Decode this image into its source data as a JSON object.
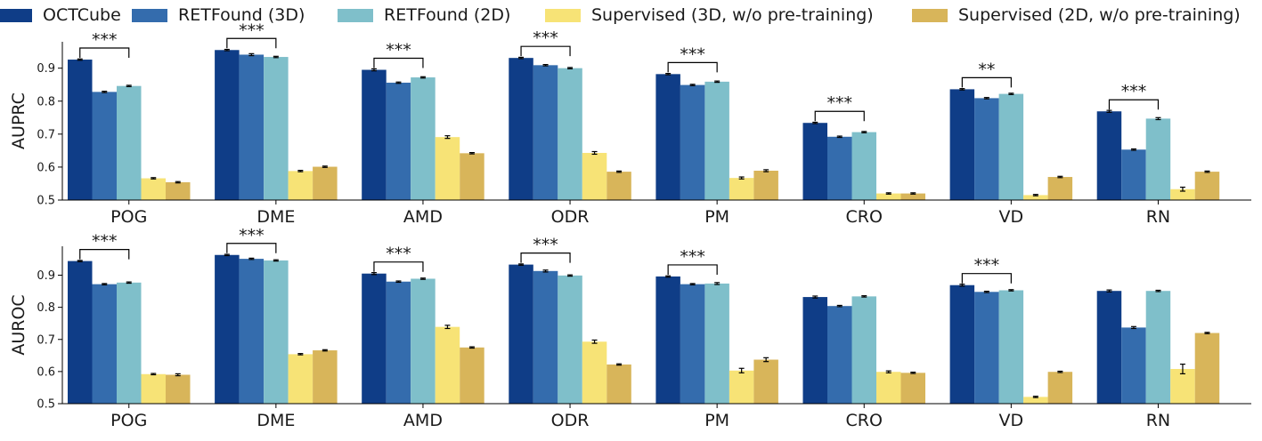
{
  "legend": [
    {
      "label": "OCTCube",
      "color": "#0f3d87"
    },
    {
      "label": "RETFound (3D)",
      "color": "#346cad"
    },
    {
      "label": "RETFound (2D)",
      "color": "#7fbfca"
    },
    {
      "label": "Supervised (3D, w/o pre-training)",
      "color": "#f7e376"
    },
    {
      "label": "Supervised (2D, w/o pre-training)",
      "color": "#d8b55a"
    }
  ],
  "chart_data": [
    {
      "type": "bar",
      "ylabel": "AUPRC",
      "ylim": [
        0.5,
        0.98
      ],
      "yticks": [
        0.5,
        0.6,
        0.7,
        0.8,
        0.9
      ],
      "categories": [
        "POG",
        "DME",
        "AMD",
        "ODR",
        "PM",
        "CRO",
        "VD",
        "RN"
      ],
      "series": [
        {
          "name": "OCTCube",
          "values": [
            0.926,
            0.955,
            0.895,
            0.931,
            0.882,
            0.734,
            0.836,
            0.769
          ]
        },
        {
          "name": "RETFound (3D)",
          "values": [
            0.828,
            0.941,
            0.856,
            0.909,
            0.849,
            0.692,
            0.809,
            0.653
          ]
        },
        {
          "name": "RETFound (2D)",
          "values": [
            0.846,
            0.934,
            0.872,
            0.9,
            0.859,
            0.706,
            0.822,
            0.747
          ]
        },
        {
          "name": "Supervised (3D, w/o pre-training)",
          "values": [
            0.566,
            0.588,
            0.691,
            0.643,
            0.567,
            0.52,
            0.515,
            0.533
          ]
        },
        {
          "name": "Supervised (2D, w/o pre-training)",
          "values": [
            0.554,
            0.601,
            0.642,
            0.586,
            0.589,
            0.52,
            0.57,
            0.586
          ]
        }
      ],
      "errors": [
        [
          0.002,
          0.002,
          0.002,
          0.002,
          0.002
        ],
        [
          0.002,
          0.003,
          0.002,
          0.002,
          0.002
        ],
        [
          0.003,
          0.002,
          0.002,
          0.004,
          0.002
        ],
        [
          0.002,
          0.002,
          0.002,
          0.004,
          0.002
        ],
        [
          0.002,
          0.002,
          0.002,
          0.003,
          0.003
        ],
        [
          0.002,
          0.002,
          0.002,
          0.002,
          0.002
        ],
        [
          0.002,
          0.002,
          0.002,
          0.002,
          0.002
        ],
        [
          0.003,
          0.002,
          0.003,
          0.006,
          0.002
        ]
      ],
      "significance": [
        {
          "category": "POG",
          "label": "***"
        },
        {
          "category": "DME",
          "label": "***"
        },
        {
          "category": "AMD",
          "label": "***"
        },
        {
          "category": "ODR",
          "label": "***"
        },
        {
          "category": "PM",
          "label": "***"
        },
        {
          "category": "CRO",
          "label": "***"
        },
        {
          "category": "VD",
          "label": "**"
        },
        {
          "category": "RN",
          "label": "***"
        }
      ]
    },
    {
      "type": "bar",
      "ylabel": "AUROC",
      "ylim": [
        0.5,
        0.99
      ],
      "yticks": [
        0.5,
        0.6,
        0.7,
        0.8,
        0.9
      ],
      "categories": [
        "POG",
        "DME",
        "AMD",
        "ODR",
        "PM",
        "CRO",
        "VD",
        "RN"
      ],
      "series": [
        {
          "name": "OCTCube",
          "values": [
            0.944,
            0.963,
            0.905,
            0.933,
            0.896,
            0.832,
            0.869,
            0.851
          ]
        },
        {
          "name": "RETFound (3D)",
          "values": [
            0.872,
            0.951,
            0.88,
            0.913,
            0.872,
            0.804,
            0.848,
            0.737
          ]
        },
        {
          "name": "RETFound (2D)",
          "values": [
            0.877,
            0.946,
            0.889,
            0.899,
            0.874,
            0.834,
            0.853,
            0.851
          ]
        },
        {
          "name": "Supervised (3D, w/o pre-training)",
          "values": [
            0.592,
            0.654,
            0.739,
            0.693,
            0.603,
            0.599,
            0.521,
            0.608
          ]
        },
        {
          "name": "Supervised (2D, w/o pre-training)",
          "values": [
            0.59,
            0.666,
            0.675,
            0.622,
            0.637,
            0.596,
            0.599,
            0.72
          ]
        }
      ],
      "errors": [
        [
          0.002,
          0.002,
          0.002,
          0.002,
          0.003
        ],
        [
          0.002,
          0.002,
          0.002,
          0.002,
          0.002
        ],
        [
          0.003,
          0.002,
          0.002,
          0.005,
          0.002
        ],
        [
          0.002,
          0.003,
          0.002,
          0.005,
          0.002
        ],
        [
          0.002,
          0.002,
          0.003,
          0.007,
          0.006
        ],
        [
          0.003,
          0.002,
          0.002,
          0.003,
          0.002
        ],
        [
          0.003,
          0.002,
          0.002,
          0.002,
          0.002
        ],
        [
          0.003,
          0.003,
          0.002,
          0.015,
          0.002
        ]
      ],
      "significance": [
        {
          "category": "POG",
          "label": "***"
        },
        {
          "category": "DME",
          "label": "***"
        },
        {
          "category": "AMD",
          "label": "***"
        },
        {
          "category": "ODR",
          "label": "***"
        },
        {
          "category": "PM",
          "label": "***"
        },
        {
          "category": "VD",
          "label": "***"
        }
      ]
    }
  ]
}
